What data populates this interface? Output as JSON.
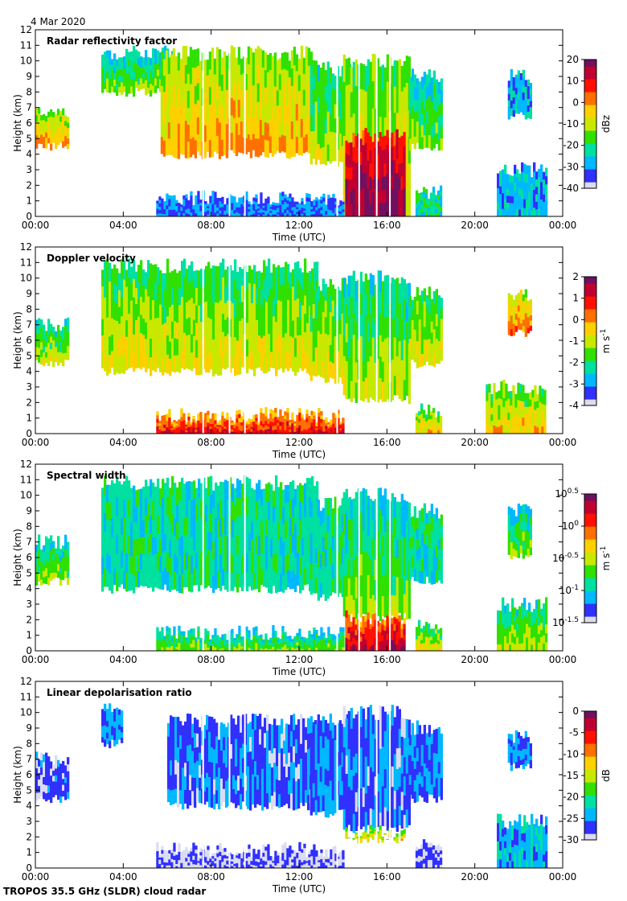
{
  "date": "4 Mar 2020",
  "footer": "TROPOS 35.5 GHz (SLDR) cloud radar",
  "xaxis": {
    "label": "Time (UTC)",
    "ticks": [
      "00:00",
      "04:00",
      "08:00",
      "12:00",
      "16:00",
      "20:00",
      "00:00"
    ],
    "range_hours": [
      0,
      24
    ]
  },
  "yaxis": {
    "label": "Height (km)",
    "ticks": [
      "0",
      "1",
      "2",
      "3",
      "4",
      "5",
      "6",
      "7",
      "8",
      "9",
      "10",
      "11",
      "12"
    ],
    "range_km": [
      0,
      12
    ]
  },
  "colors": {
    "colormap": [
      "#dcdcf0",
      "#3030ff",
      "#00b8ff",
      "#00e0a0",
      "#30e000",
      "#c8e800",
      "#ffd000",
      "#ff7000",
      "#ff1000",
      "#c00030",
      "#701060"
    ],
    "no_data_gray": "#cccccc"
  },
  "chart_data": [
    {
      "type": "heatmap",
      "title": "Radar reflectivity factor",
      "xlabel": "Time (UTC)",
      "ylabel": "Height (km)",
      "xlim": [
        0,
        24
      ],
      "ylim": [
        0,
        12
      ],
      "colorbar": {
        "label": "dBz",
        "ticks": [
          "20",
          "10",
          "0",
          "-10",
          "-20",
          "-30",
          "-40"
        ]
      },
      "regions": [
        {
          "t0": 0.0,
          "t1": 1.5,
          "h0": 4.5,
          "h1": 6.8,
          "level": 0.55
        },
        {
          "t0": 3.0,
          "t1": 6.3,
          "h0": 8.0,
          "h1": 10.5,
          "level": 0.35
        },
        {
          "t0": 5.7,
          "t1": 12.8,
          "h0": 4.0,
          "h1": 10.5,
          "level": 0.55
        },
        {
          "t0": 12.5,
          "t1": 14.3,
          "h0": 3.5,
          "h1": 9.5,
          "level": 0.4
        },
        {
          "t0": 14.0,
          "t1": 17.0,
          "h0": 0.0,
          "h1": 10.0,
          "level": 0.5
        },
        {
          "t0": 14.1,
          "t1": 16.8,
          "h0": 0.0,
          "h1": 5.2,
          "level": 0.9
        },
        {
          "t0": 17.0,
          "t1": 18.5,
          "h0": 4.5,
          "h1": 9.0,
          "level": 0.35
        },
        {
          "t0": 5.5,
          "t1": 14.0,
          "h0": 0.0,
          "h1": 1.2,
          "level": 0.15
        },
        {
          "t0": 17.3,
          "t1": 18.5,
          "h0": 0.0,
          "h1": 1.5,
          "level": 0.3
        },
        {
          "t0": 21.5,
          "t1": 22.5,
          "h0": 6.5,
          "h1": 9.0,
          "level": 0.2
        },
        {
          "t0": 21.0,
          "t1": 23.2,
          "h0": 0.0,
          "h1": 3.0,
          "level": 0.2
        }
      ]
    },
    {
      "type": "heatmap",
      "title": "Doppler velocity",
      "xlabel": "Time (UTC)",
      "ylabel": "Height (km)",
      "xlim": [
        0,
        24
      ],
      "ylim": [
        0,
        12
      ],
      "colorbar": {
        "label": "m s-1",
        "ticks": [
          "2",
          "1",
          "0",
          "-1",
          "-2",
          "-3",
          "-4"
        ]
      },
      "regions": [
        {
          "t0": 0.0,
          "t1": 1.5,
          "h0": 4.5,
          "h1": 7.0,
          "level": 0.4
        },
        {
          "t0": 3.0,
          "t1": 12.8,
          "h0": 4.0,
          "h1": 10.8,
          "level": 0.45
        },
        {
          "t0": 12.5,
          "t1": 14.3,
          "h0": 3.5,
          "h1": 9.5,
          "level": 0.45
        },
        {
          "t0": 14.0,
          "t1": 17.0,
          "h0": 2.2,
          "h1": 10.0,
          "level": 0.4
        },
        {
          "t0": 17.0,
          "t1": 18.5,
          "h0": 4.5,
          "h1": 9.0,
          "level": 0.45
        },
        {
          "t0": 5.5,
          "t1": 14.0,
          "h0": 0.0,
          "h1": 1.2,
          "level": 0.75
        },
        {
          "t0": 17.3,
          "t1": 18.5,
          "h0": 0.0,
          "h1": 1.5,
          "level": 0.5
        },
        {
          "t0": 21.5,
          "t1": 22.5,
          "h0": 6.5,
          "h1": 9.0,
          "level": 0.6
        },
        {
          "t0": 20.5,
          "t1": 23.2,
          "h0": 0.0,
          "h1": 3.0,
          "level": 0.5
        }
      ]
    },
    {
      "type": "heatmap",
      "title": "Spectral width",
      "xlabel": "Time (UTC)",
      "ylabel": "Height (km)",
      "xlim": [
        0,
        24
      ],
      "ylim": [
        0,
        12
      ],
      "colorbar": {
        "label": "m s-1",
        "ticks": [
          "10^0.5",
          "10^0",
          "10^-0.5",
          "10^-1",
          "10^-1.5"
        ]
      },
      "regions": [
        {
          "t0": 0.0,
          "t1": 1.5,
          "h0": 4.5,
          "h1": 7.0,
          "level": 0.35
        },
        {
          "t0": 3.0,
          "t1": 12.8,
          "h0": 4.0,
          "h1": 10.8,
          "level": 0.3
        },
        {
          "t0": 12.5,
          "t1": 14.3,
          "h0": 3.5,
          "h1": 9.5,
          "level": 0.3
        },
        {
          "t0": 14.0,
          "t1": 17.0,
          "h0": 2.2,
          "h1": 10.0,
          "level": 0.35
        },
        {
          "t0": 14.1,
          "t1": 16.8,
          "h0": 0.0,
          "h1": 2.2,
          "level": 0.8
        },
        {
          "t0": 17.0,
          "t1": 18.5,
          "h0": 4.5,
          "h1": 9.0,
          "level": 0.3
        },
        {
          "t0": 5.5,
          "t1": 14.0,
          "h0": 0.0,
          "h1": 1.2,
          "level": 0.35
        },
        {
          "t0": 17.3,
          "t1": 18.5,
          "h0": 0.0,
          "h1": 1.5,
          "level": 0.45
        },
        {
          "t0": 21.5,
          "t1": 22.5,
          "h0": 6.0,
          "h1": 9.0,
          "level": 0.35
        },
        {
          "t0": 21.0,
          "t1": 23.2,
          "h0": 0.0,
          "h1": 3.0,
          "level": 0.4
        }
      ]
    },
    {
      "type": "heatmap",
      "title": "Linear depolarisation ratio",
      "xlabel": "Time (UTC)",
      "ylabel": "Height (km)",
      "xlim": [
        0,
        24
      ],
      "ylim": [
        0,
        12
      ],
      "colorbar": {
        "label": "dB",
        "ticks": [
          "0",
          "-5",
          "-10",
          "-15",
          "-20",
          "-25",
          "-30"
        ]
      },
      "regions": [
        {
          "t0": 0.0,
          "t1": 1.5,
          "h0": 4.5,
          "h1": 7.0,
          "level": 0.08
        },
        {
          "t0": 3.0,
          "t1": 3.9,
          "h0": 8.0,
          "h1": 10.3,
          "level": 0.15
        },
        {
          "t0": 6.0,
          "t1": 12.8,
          "h0": 4.0,
          "h1": 9.5,
          "level": 0.12
        },
        {
          "t0": 12.5,
          "t1": 14.3,
          "h0": 3.5,
          "h1": 9.5,
          "level": 0.15
        },
        {
          "t0": 14.0,
          "t1": 17.0,
          "h0": 2.5,
          "h1": 10.0,
          "level": 0.12
        },
        {
          "t0": 14.1,
          "t1": 16.8,
          "h0": 1.9,
          "h1": 2.3,
          "level": 0.5
        },
        {
          "t0": 17.0,
          "t1": 18.5,
          "h0": 4.5,
          "h1": 9.0,
          "level": 0.15
        },
        {
          "t0": 5.5,
          "t1": 14.0,
          "h0": 0.0,
          "h1": 1.2,
          "level": 0.05
        },
        {
          "t0": 17.3,
          "t1": 18.5,
          "h0": 0.0,
          "h1": 1.5,
          "level": 0.05
        },
        {
          "t0": 21.5,
          "t1": 22.5,
          "h0": 6.5,
          "h1": 8.5,
          "level": 0.15
        },
        {
          "t0": 21.0,
          "t1": 23.2,
          "h0": 0.0,
          "h1": 3.0,
          "level": 0.2
        }
      ]
    }
  ]
}
